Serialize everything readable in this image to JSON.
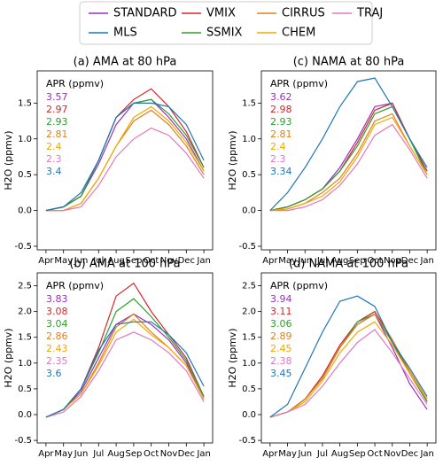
{
  "legend": [
    {
      "name": "STANDARD",
      "color": "#9a2fc4"
    },
    {
      "name": "MLS",
      "color": "#1f77b4"
    },
    {
      "name": "VMIX",
      "color": "#d62728"
    },
    {
      "name": "SSMIX",
      "color": "#2ca02c"
    },
    {
      "name": "CIRRUS",
      "color": "#e0801e"
    },
    {
      "name": "CHEM",
      "color": "#f5a800"
    },
    {
      "name": "TRAJ",
      "color": "#e377c2"
    }
  ],
  "chart_data": [
    {
      "type": "line",
      "title": "(a) AMA at 80 hPa",
      "y_label": "H2O (ppmv)",
      "annotation_title": "APR (ppmv)",
      "categories": [
        "Apr",
        "May",
        "Jun",
        "Jul",
        "Aug",
        "Sep",
        "Oct",
        "Nov",
        "Dec",
        "Jan"
      ],
      "ylim": [
        -0.55,
        1.95
      ],
      "yticks": [
        -0.5,
        {
          "value": 0,
          "label": "0.0"
        },
        0.5,
        {
          "value": 1,
          "label": "1.0"
        },
        1.5
      ],
      "series": [
        {
          "color": "#9a2fc4",
          "apr": 3.57,
          "values": [
            0,
            0.05,
            0.2,
            0.65,
            1.2,
            1.5,
            1.55,
            1.3,
            1.0,
            0.55
          ]
        },
        {
          "color": "#d62728",
          "apr": 2.97,
          "values": [
            0,
            0.05,
            0.2,
            0.7,
            1.3,
            1.55,
            1.7,
            1.45,
            1.1,
            0.6
          ]
        },
        {
          "color": "#2ca02c",
          "apr": 2.93,
          "values": [
            0,
            0.05,
            0.2,
            0.7,
            1.3,
            1.5,
            1.55,
            1.35,
            1.05,
            0.6
          ]
        },
        {
          "color": "#e0801e",
          "apr": 2.81,
          "values": [
            0,
            0,
            0.1,
            0.45,
            0.9,
            1.25,
            1.4,
            1.2,
            0.9,
            0.5
          ]
        },
        {
          "color": "#f5a800",
          "apr": 2.4,
          "values": [
            0,
            0,
            0.1,
            0.45,
            0.9,
            1.3,
            1.45,
            1.25,
            0.95,
            0.55
          ]
        },
        {
          "color": "#e377c2",
          "apr": 2.3,
          "values": [
            0,
            0,
            0.05,
            0.35,
            0.75,
            1.0,
            1.15,
            1.05,
            0.8,
            0.45
          ]
        },
        {
          "color": "#1f77b4",
          "apr": 3.4,
          "values": [
            0,
            0.05,
            0.25,
            0.7,
            1.3,
            1.5,
            1.5,
            1.45,
            1.2,
            0.7
          ]
        }
      ]
    },
    {
      "type": "line",
      "title": "(c) NAMA at 80 hPa",
      "y_label": "H2O (ppmv)",
      "annotation_title": "APR (ppmv)",
      "categories": [
        "Apr",
        "May",
        "Jun",
        "Jul",
        "Aug",
        "Sep",
        "Oct",
        "Nov",
        "Dec",
        "Jan"
      ],
      "ylim": [
        -0.55,
        1.95
      ],
      "yticks": [
        -0.5,
        {
          "value": 0,
          "label": "0.0"
        },
        0.5,
        {
          "value": 1,
          "label": "1.0"
        },
        1.5
      ],
      "series": [
        {
          "color": "#9a2fc4",
          "apr": 3.62,
          "values": [
            0,
            0.05,
            0.15,
            0.3,
            0.6,
            1.0,
            1.45,
            1.5,
            1.0,
            0.55
          ]
        },
        {
          "color": "#d62728",
          "apr": 2.98,
          "values": [
            0,
            0.05,
            0.15,
            0.3,
            0.55,
            0.95,
            1.4,
            1.5,
            1.0,
            0.55
          ]
        },
        {
          "color": "#2ca02c",
          "apr": 2.93,
          "values": [
            0,
            0.05,
            0.15,
            0.3,
            0.55,
            0.9,
            1.35,
            1.45,
            1.0,
            0.5
          ]
        },
        {
          "color": "#e0801e",
          "apr": 2.81,
          "values": [
            0,
            0.02,
            0.1,
            0.25,
            0.45,
            0.8,
            1.25,
            1.35,
            0.9,
            0.5
          ]
        },
        {
          "color": "#f5a800",
          "apr": 2.4,
          "values": [
            0,
            0.02,
            0.1,
            0.2,
            0.4,
            0.75,
            1.2,
            1.3,
            0.9,
            0.5
          ]
        },
        {
          "color": "#e377c2",
          "apr": 2.3,
          "values": [
            0,
            0,
            0.05,
            0.15,
            0.35,
            0.65,
            1.05,
            1.2,
            0.85,
            0.45
          ]
        },
        {
          "color": "#1f77b4",
          "apr": 3.34,
          "values": [
            0,
            0.25,
            0.6,
            1.0,
            1.45,
            1.8,
            1.85,
            1.45,
            1.0,
            0.6
          ]
        }
      ]
    },
    {
      "type": "line",
      "title": "(b) AMA at 100 hPa",
      "y_label": "H2O (ppmv)",
      "annotation_title": "APR (ppmv)",
      "categories": [
        "Apr",
        "May",
        "Jun",
        "Jul",
        "Aug",
        "Sep",
        "Oct",
        "Nov",
        "Dec",
        "Jan"
      ],
      "ylim": [
        -0.55,
        2.75
      ],
      "yticks": [
        -0.5,
        {
          "value": 0,
          "label": "0.0"
        },
        0.5,
        {
          "value": 1,
          "label": "1.0"
        },
        1.5,
        {
          "value": 2,
          "label": "2.0"
        },
        2.5
      ],
      "series": [
        {
          "color": "#9a2fc4",
          "apr": 3.83,
          "values": [
            -0.05,
            0.1,
            0.45,
            1.1,
            1.75,
            1.95,
            1.75,
            1.45,
            1.0,
            0.3
          ]
        },
        {
          "color": "#d62728",
          "apr": 3.08,
          "values": [
            -0.05,
            0.1,
            0.5,
            1.3,
            2.3,
            2.55,
            2.0,
            1.55,
            1.1,
            0.35
          ]
        },
        {
          "color": "#2ca02c",
          "apr": 3.04,
          "values": [
            -0.05,
            0.1,
            0.5,
            1.2,
            2.0,
            2.25,
            1.9,
            1.5,
            1.05,
            0.35
          ]
        },
        {
          "color": "#e0801e",
          "apr": 2.86,
          "values": [
            -0.05,
            0.1,
            0.4,
            1.0,
            1.7,
            1.95,
            1.6,
            1.3,
            0.95,
            0.3
          ]
        },
        {
          "color": "#f5a800",
          "apr": 2.43,
          "values": [
            -0.05,
            0.1,
            0.4,
            0.95,
            1.6,
            1.85,
            1.55,
            1.3,
            0.95,
            0.3
          ]
        },
        {
          "color": "#e377c2",
          "apr": 2.35,
          "values": [
            -0.05,
            0.05,
            0.35,
            0.85,
            1.45,
            1.6,
            1.45,
            1.2,
            0.85,
            0.25
          ]
        },
        {
          "color": "#1f77b4",
          "apr": 3.6,
          "values": [
            -0.05,
            0.1,
            0.5,
            1.25,
            1.75,
            1.8,
            1.8,
            1.55,
            1.2,
            0.55
          ]
        }
      ]
    },
    {
      "type": "line",
      "title": "(d) NAMA at 100 hPa",
      "y_label": "H2O (ppmv)",
      "annotation_title": "APR (ppmv)",
      "categories": [
        "Apr",
        "May",
        "Jun",
        "Jul",
        "Aug",
        "Sep",
        "Oct",
        "Nov",
        "Dec",
        "Jan"
      ],
      "ylim": [
        -0.55,
        2.75
      ],
      "yticks": [
        -0.5,
        {
          "value": 0,
          "label": "0.0"
        },
        0.5,
        {
          "value": 1,
          "label": "1.0"
        },
        1.5,
        {
          "value": 2,
          "label": "2.0"
        },
        2.5
      ],
      "series": [
        {
          "color": "#9a2fc4",
          "apr": 3.94,
          "values": [
            -0.05,
            0.05,
            0.3,
            0.7,
            1.3,
            1.75,
            1.95,
            1.3,
            0.6,
            0.1
          ]
        },
        {
          "color": "#d62728",
          "apr": 3.11,
          "values": [
            -0.05,
            0.05,
            0.3,
            0.75,
            1.35,
            1.8,
            2.0,
            1.45,
            0.8,
            0.25
          ]
        },
        {
          "color": "#2ca02c",
          "apr": 3.06,
          "values": [
            -0.05,
            0.05,
            0.3,
            0.7,
            1.3,
            1.8,
            1.95,
            1.4,
            0.8,
            0.25
          ]
        },
        {
          "color": "#e0801e",
          "apr": 2.89,
          "values": [
            -0.05,
            0.05,
            0.3,
            0.7,
            1.3,
            1.75,
            1.95,
            1.45,
            0.85,
            0.3
          ]
        },
        {
          "color": "#f5a800",
          "apr": 2.45,
          "values": [
            -0.05,
            0.05,
            0.25,
            0.65,
            1.2,
            1.6,
            1.8,
            1.35,
            0.8,
            0.3
          ]
        },
        {
          "color": "#e377c2",
          "apr": 2.38,
          "values": [
            -0.05,
            0.05,
            0.2,
            0.55,
            1.0,
            1.4,
            1.65,
            1.2,
            0.7,
            0.2
          ]
        },
        {
          "color": "#1f77b4",
          "apr": 3.45,
          "values": [
            -0.05,
            0.2,
            0.9,
            1.6,
            2.2,
            2.3,
            2.1,
            1.4,
            0.9,
            0.35
          ]
        }
      ]
    }
  ]
}
